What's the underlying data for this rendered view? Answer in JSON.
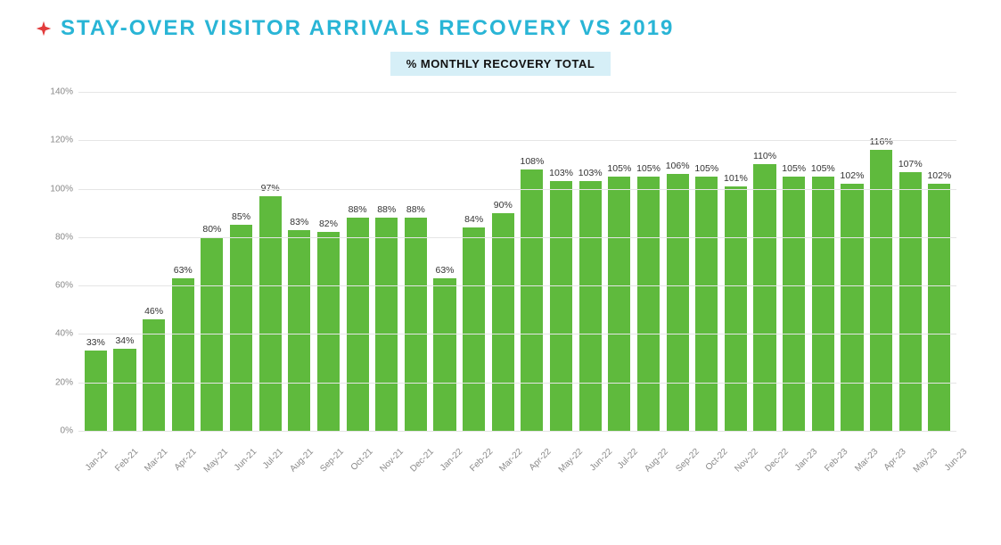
{
  "title": "STAY-OVER VISITOR ARRIVALS RECOVERY VS 2019",
  "title_color": "#29b5d6",
  "title_fontsize": 24,
  "star_icon_color": "#e23b3b",
  "legend": {
    "label": "% MONTHLY RECOVERY TOTAL",
    "bg_color": "#d6eff7",
    "text_color": "#111111",
    "fontsize": 13
  },
  "chart": {
    "type": "bar",
    "ylim": [
      0,
      140
    ],
    "ytick_step": 20,
    "y_suffix": "%",
    "grid_color": "#e5e5e5",
    "axis_label_color": "#888888",
    "bar_color": "#5fba3d",
    "value_label_color": "#333333",
    "value_label_fontsize": 10.5,
    "x_label_fontsize": 10,
    "x_label_rotation": -45,
    "background_color": "#ffffff",
    "categories": [
      "Jan-21",
      "Feb-21",
      "Mar-21",
      "Apr-21",
      "May-21",
      "Jun-21",
      "Jul-21",
      "Aug-21",
      "Sep-21",
      "Oct-21",
      "Nov-21",
      "Dec-21",
      "Jan-22",
      "Feb-22",
      "Mar-22",
      "Apr-22",
      "May-22",
      "Jun-22",
      "Jul-22",
      "Aug-22",
      "Sep-22",
      "Oct-22",
      "Nov-22",
      "Dec-22",
      "Jan-23",
      "Feb-23",
      "Mar-23",
      "Apr-23",
      "May-23",
      "Jun-23"
    ],
    "values": [
      33,
      34,
      46,
      63,
      80,
      85,
      97,
      83,
      82,
      88,
      88,
      88,
      63,
      84,
      90,
      108,
      103,
      103,
      105,
      105,
      106,
      105,
      101,
      110,
      105,
      105,
      102,
      116,
      107,
      102
    ]
  }
}
